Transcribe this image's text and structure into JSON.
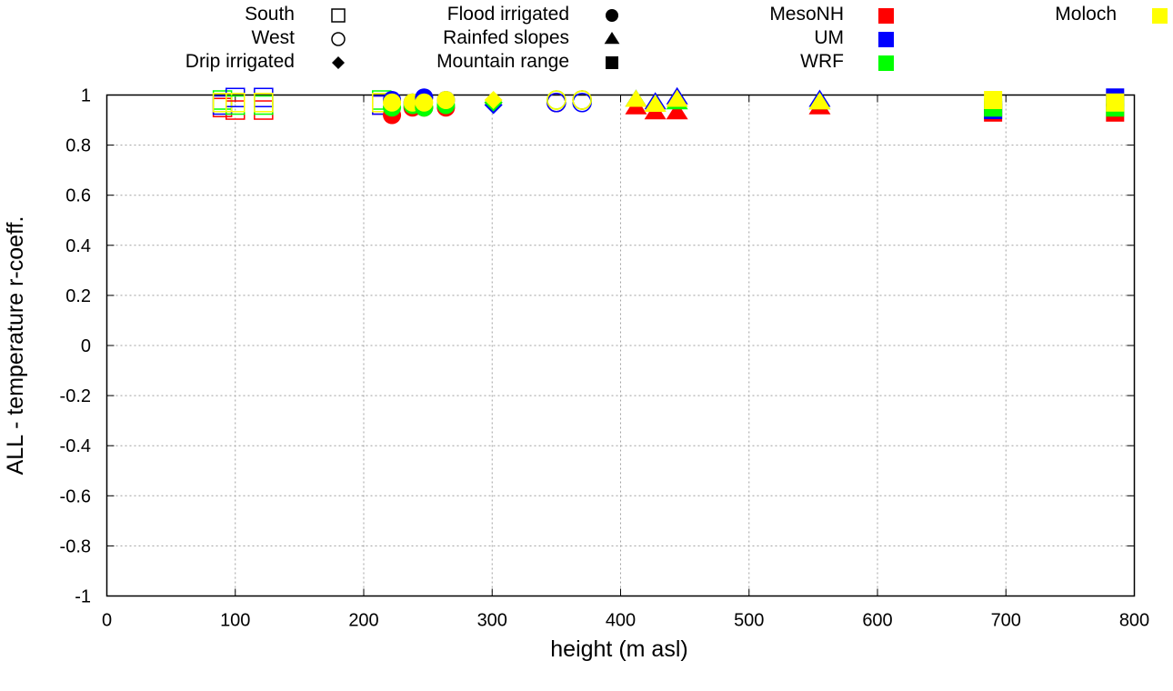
{
  "chart_data": {
    "type": "scatter",
    "title": "",
    "xlabel": "height (m asl)",
    "ylabel": "ALL - temperature r-coeff.",
    "xlim": [
      0,
      800
    ],
    "ylim": [
      -1,
      1
    ],
    "grid": true,
    "xticks": [
      "0",
      "100",
      "200",
      "300",
      "400",
      "500",
      "600",
      "700",
      "800"
    ],
    "yticks": [
      "1",
      "0.8",
      "0.6",
      "0.4",
      "0.2",
      "0",
      "-0.2",
      "-0.4",
      "-0.6",
      "-0.8",
      "-1"
    ],
    "legend_position": "top",
    "site_types": [
      {
        "name": "South",
        "marker": "open-square"
      },
      {
        "name": "West",
        "marker": "open-circle"
      },
      {
        "name": "Drip irrigated",
        "marker": "filled-diamond"
      },
      {
        "name": "Flood irrigated",
        "marker": "filled-circle"
      },
      {
        "name": "Rainfed slopes",
        "marker": "filled-triangle"
      },
      {
        "name": "Mountain range",
        "marker": "filled-square"
      }
    ],
    "models": [
      {
        "name": "MesoNH",
        "color": "#ff0000"
      },
      {
        "name": "UM",
        "color": "#0000ff"
      },
      {
        "name": "WRF",
        "color": "#00ff00"
      },
      {
        "name": "Moloch",
        "color": "#ffff00"
      }
    ],
    "points": [
      {
        "site": "South",
        "x": 90,
        "values": {
          "MesoNH": 0.95,
          "UM": 0.96,
          "WRF": 0.98,
          "Moloch": 0.97
        }
      },
      {
        "site": "South",
        "x": 100,
        "values": {
          "MesoNH": 0.94,
          "UM": 0.99,
          "WRF": 0.96,
          "Moloch": 0.97
        }
      },
      {
        "site": "South",
        "x": 122,
        "values": {
          "MesoNH": 0.94,
          "UM": 0.99,
          "WRF": 0.96,
          "Moloch": 0.97
        }
      },
      {
        "site": "South",
        "x": 214,
        "values": {
          "MesoNH": 0.96,
          "UM": 0.96,
          "WRF": 0.98,
          "Moloch": 0.97
        }
      },
      {
        "site": "Flood irrigated",
        "x": 222,
        "values": {
          "MesoNH": 0.92,
          "UM": 0.98,
          "WRF": 0.95,
          "Moloch": 0.97
        }
      },
      {
        "site": "Flood irrigated",
        "x": 238,
        "values": {
          "MesoNH": 0.95,
          "UM": 0.97,
          "WRF": 0.96,
          "Moloch": 0.97
        }
      },
      {
        "site": "Flood irrigated",
        "x": 247,
        "values": {
          "MesoNH": 0.95,
          "UM": 0.99,
          "WRF": 0.95,
          "Moloch": 0.97
        }
      },
      {
        "site": "Flood irrigated",
        "x": 264,
        "values": {
          "MesoNH": 0.95,
          "UM": 0.98,
          "WRF": 0.96,
          "Moloch": 0.98
        }
      },
      {
        "site": "Drip irrigated",
        "x": 301,
        "values": {
          "MesoNH": 0.97,
          "UM": 0.96,
          "WRF": 0.97,
          "Moloch": 0.98
        }
      },
      {
        "site": "West",
        "x": 350,
        "values": {
          "MesoNH": 0.97,
          "UM": 0.97,
          "WRF": 0.98,
          "Moloch": 0.98
        }
      },
      {
        "site": "West",
        "x": 370,
        "values": {
          "MesoNH": 0.98,
          "UM": 0.97,
          "WRF": 0.98,
          "Moloch": 0.98
        }
      },
      {
        "site": "Rainfed slopes",
        "x": 412,
        "values": {
          "MesoNH": 0.95,
          "UM": 0.98,
          "WRF": 0.98,
          "Moloch": 0.98
        }
      },
      {
        "site": "Rainfed slopes",
        "x": 427,
        "values": {
          "MesoNH": 0.93,
          "UM": 0.97,
          "WRF": 0.96,
          "Moloch": 0.96
        }
      },
      {
        "site": "Rainfed slopes",
        "x": 444,
        "values": {
          "MesoNH": 0.93,
          "UM": 0.99,
          "WRF": 0.97,
          "Moloch": 0.98
        }
      },
      {
        "site": "Rainfed slopes",
        "x": 555,
        "values": {
          "MesoNH": 0.95,
          "UM": 0.98,
          "WRF": 0.97,
          "Moloch": 0.97
        }
      },
      {
        "site": "Mountain range",
        "x": 690,
        "values": {
          "MesoNH": 0.93,
          "UM": 0.94,
          "WRF": 0.95,
          "Moloch": 0.98
        }
      },
      {
        "site": "Mountain range",
        "x": 785,
        "values": {
          "MesoNH": 0.93,
          "UM": 0.99,
          "WRF": 0.95,
          "Moloch": 0.97
        }
      }
    ]
  }
}
